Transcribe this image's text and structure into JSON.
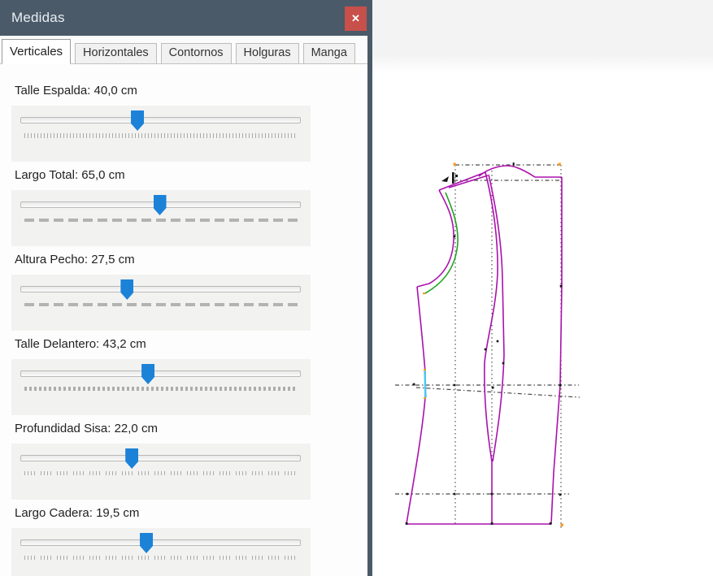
{
  "window": {
    "title": "Medidas",
    "close_glyph": "✕"
  },
  "tabs": [
    {
      "label": "Verticales",
      "active": true
    },
    {
      "label": "Horizontales",
      "active": false
    },
    {
      "label": "Contornos",
      "active": false
    },
    {
      "label": "Holguras",
      "active": false
    },
    {
      "label": "Manga",
      "active": false
    }
  ],
  "sliders": [
    {
      "name": "Talle Espalda",
      "value": "40,0 cm",
      "display": "Talle Espalda: 40,0 cm",
      "thumb_percent": 42.0
    },
    {
      "name": "Largo Total",
      "value": "65,0 cm",
      "display": "Largo Total: 65,0 cm",
      "thumb_percent": 50.0
    },
    {
      "name": "Altura Pecho",
      "value": "27,5 cm",
      "display": "Altura Pecho: 27,5 cm",
      "thumb_percent": 38.3
    },
    {
      "name": "Talle Delantero",
      "value": "43,2 cm",
      "display": "Talle Delantero: 43,2 cm",
      "thumb_percent": 45.8
    },
    {
      "name": "Profundidad Sisa",
      "value": "22,0 cm",
      "display": "Profundidad Sisa: 22,0 cm",
      "thumb_percent": 40.0
    },
    {
      "name": "Largo Cadera",
      "value": "19,5 cm",
      "display": "Largo Cadera: 19,5 cm",
      "thumb_percent": 45.2
    }
  ],
  "colors": {
    "titlebar": "#4a5a68",
    "close_button": "#c7504b",
    "slider_thumb": "#1b82d8",
    "pattern_magenta": "#ab10ad",
    "seam_green": "#1fa31f",
    "notch_cyan": "#49c8f2",
    "marker_orange": "#f59d2c",
    "construction_gray": "#4b4b4b"
  }
}
